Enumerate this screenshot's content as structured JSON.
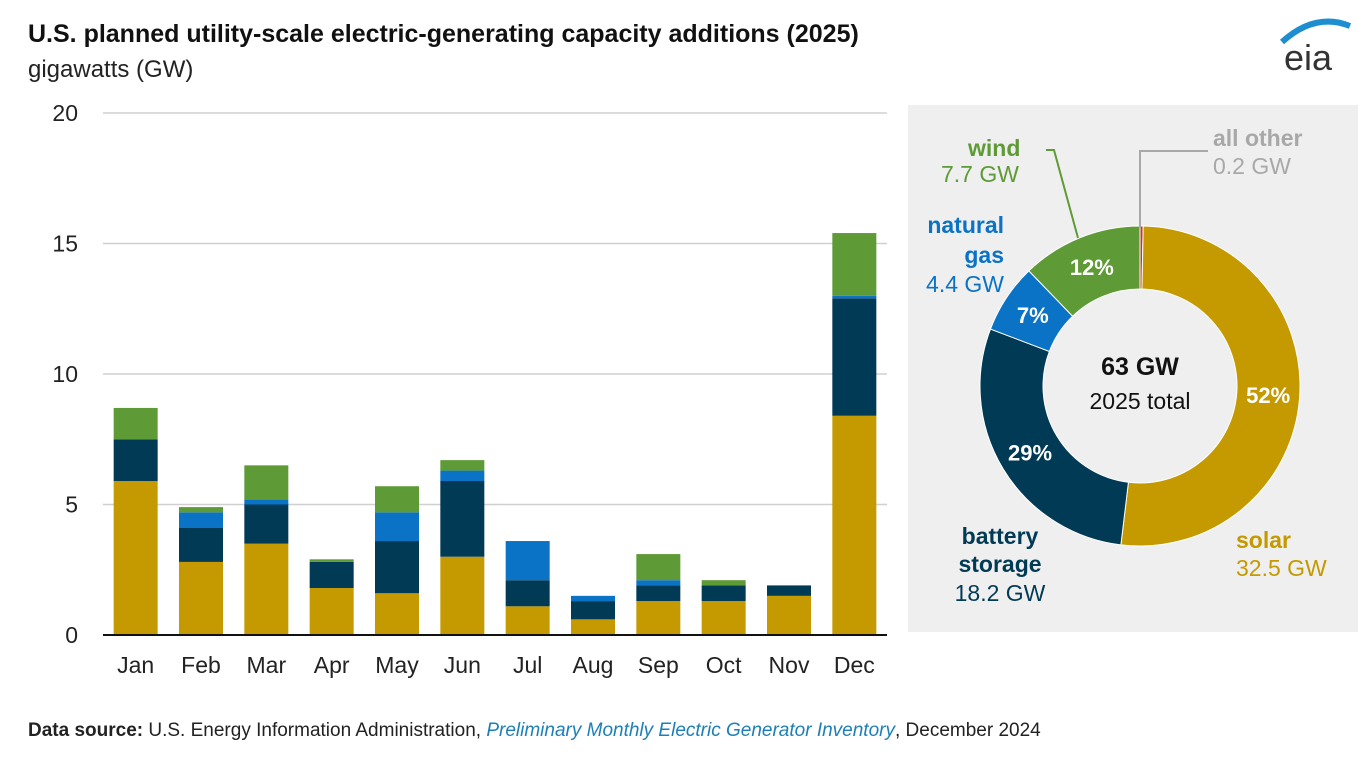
{
  "title": "U.S. planned utility-scale electric-generating capacity additions (2025)",
  "subtitle": "gigawatts (GW)",
  "logo_text": "eia",
  "colors": {
    "solar": "#c49a00",
    "battery storage": "#003a55",
    "natural gas": "#0b73c6",
    "wind": "#5e9a35",
    "all other": "#c0392b"
  },
  "chart_data": [
    {
      "type": "bar",
      "stacked": true,
      "categories": [
        "Jan",
        "Feb",
        "Mar",
        "Apr",
        "May",
        "Jun",
        "Jul",
        "Aug",
        "Sep",
        "Oct",
        "Nov",
        "Dec"
      ],
      "ylim": [
        0,
        20
      ],
      "yticks": [
        0,
        5,
        10,
        15,
        20
      ],
      "grid": true,
      "series": [
        {
          "name": "solar",
          "values": [
            5.9,
            2.8,
            3.5,
            1.8,
            1.6,
            3.0,
            1.1,
            0.6,
            1.3,
            1.3,
            1.5,
            8.4
          ]
        },
        {
          "name": "battery storage",
          "values": [
            1.6,
            1.3,
            1.5,
            1.0,
            2.0,
            2.9,
            1.0,
            0.7,
            0.6,
            0.6,
            0.4,
            4.5
          ]
        },
        {
          "name": "natural gas",
          "values": [
            0.0,
            0.6,
            0.2,
            0.0,
            1.1,
            0.4,
            1.5,
            0.2,
            0.2,
            0.0,
            0.0,
            0.1
          ]
        },
        {
          "name": "wind",
          "values": [
            1.2,
            0.2,
            1.3,
            0.1,
            1.0,
            0.4,
            0.0,
            0.0,
            1.0,
            0.2,
            0.0,
            2.4
          ]
        }
      ]
    },
    {
      "type": "pie",
      "donut": true,
      "center_value": "63 GW",
      "center_label": "2025 total",
      "slices": [
        {
          "name": "all other",
          "value_label": "0.2 GW",
          "value": 0.2,
          "percent": "0%"
        },
        {
          "name": "solar",
          "value_label": "32.5 GW",
          "value": 32.5,
          "percent": "52%"
        },
        {
          "name": "battery storage",
          "value_label": "18.2 GW",
          "value": 18.2,
          "percent": "29%"
        },
        {
          "name": "natural gas",
          "value_label": "4.4 GW",
          "value": 4.4,
          "percent": "7%"
        },
        {
          "name": "wind",
          "value_label": "7.7 GW",
          "value": 7.7,
          "percent": "12%"
        }
      ]
    }
  ],
  "donut_labels": {
    "wind": [
      "wind",
      "7.7 GW"
    ],
    "natural_gas": [
      "natural",
      "gas",
      "4.4 GW"
    ],
    "battery": [
      "battery",
      "storage",
      "18.2 GW"
    ],
    "solar": [
      "solar",
      "32.5 GW"
    ],
    "other": [
      "all other",
      "0.2 GW"
    ]
  },
  "footer": {
    "label": "Data source:",
    "text1": " U.S. Energy Information Administration, ",
    "link": "Preliminary Monthly Electric Generator Inventory",
    "text2": ", December 2024"
  }
}
